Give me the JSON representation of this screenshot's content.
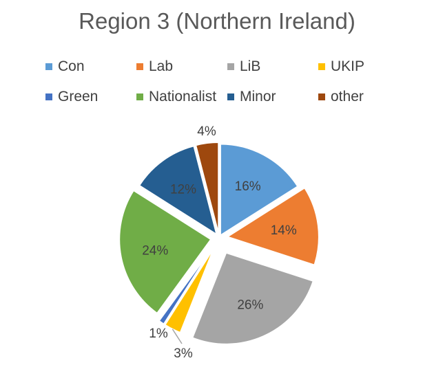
{
  "chart_data": {
    "type": "pie",
    "title": "Region 3 (Northern Ireland)",
    "categories": [
      "Con",
      "Lab",
      "LiB",
      "UKIP",
      "Green",
      "Nationalist",
      "Minor",
      "other"
    ],
    "values": [
      16,
      14,
      26,
      3,
      1,
      24,
      12,
      4
    ],
    "labels": [
      "16%",
      "14%",
      "26%",
      "3%",
      "1%",
      "24%",
      "12%",
      "4%"
    ],
    "colors": [
      "#5B9BD5",
      "#ED7D31",
      "#A5A5A5",
      "#FFC000",
      "#4472C4",
      "#70AD47",
      "#255E91",
      "#9E480E"
    ],
    "legend_position": "top"
  }
}
